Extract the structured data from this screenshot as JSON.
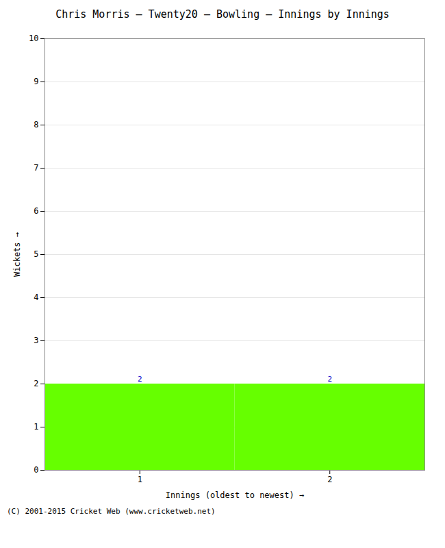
{
  "chart_data": {
    "type": "bar",
    "title": "Chris Morris – Twenty20 – Bowling – Innings by Innings",
    "xlabel": "Innings (oldest to newest)",
    "ylabel": "Wickets",
    "caption": "(C) 2001-2015 Cricket Web (www.cricketweb.net)",
    "categories": [
      1,
      2
    ],
    "values": [
      2,
      2
    ],
    "color": "#66ff00",
    "xlim": [
      0.5,
      2.5
    ],
    "xticks": [
      1,
      2
    ],
    "ylim": [
      0,
      10
    ],
    "yticks": [
      0,
      1,
      2,
      3,
      4,
      5,
      6,
      7,
      8,
      9,
      10
    ],
    "grid": true,
    "data_labels": true
  }
}
